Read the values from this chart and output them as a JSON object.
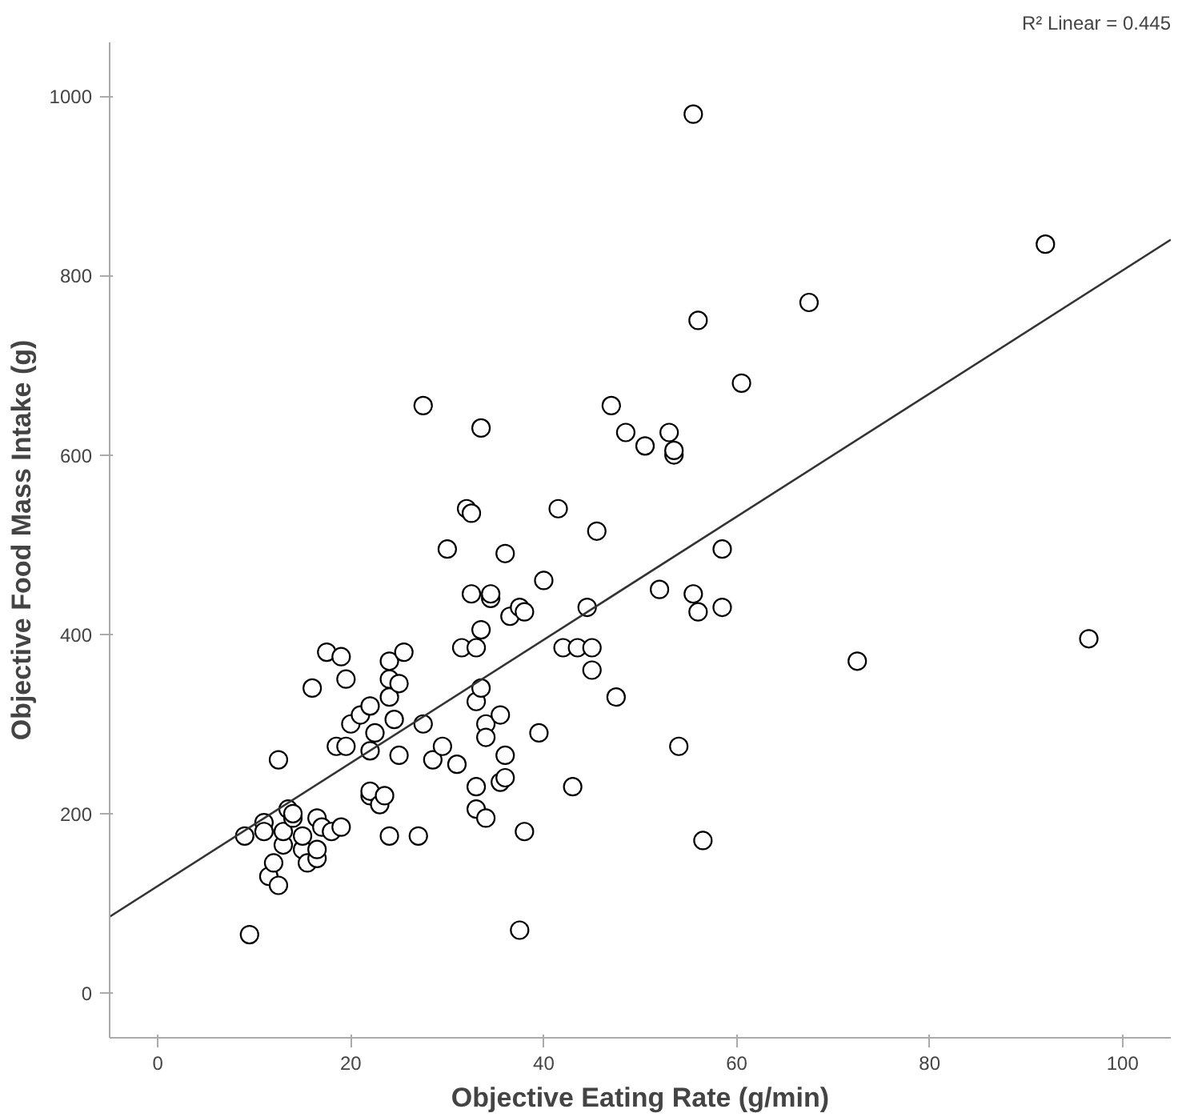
{
  "chart_data": {
    "type": "scatter",
    "xlabel": "Objective Eating Rate (g/min)",
    "ylabel": "Objective Food Mass Intake (g)",
    "annotations": [
      "R² Linear = 0.445"
    ],
    "xlim": [
      -5,
      105
    ],
    "ylim": [
      -50,
      1060
    ],
    "xticks": [
      0,
      20,
      40,
      60,
      80,
      100
    ],
    "yticks": [
      0,
      200,
      400,
      600,
      800,
      1000
    ],
    "grid": false,
    "marker": "circle",
    "series": [
      {
        "color": "#000000",
        "x": [
          9.5,
          9,
          11,
          11,
          11.5,
          12,
          12.5,
          12.5,
          13,
          13,
          13.5,
          14,
          14,
          15,
          15,
          15.5,
          16,
          16.5,
          16.5,
          16.5,
          17,
          17.5,
          18,
          18.5,
          19,
          19,
          19.5,
          19.5,
          20,
          21,
          22,
          22,
          22,
          22,
          22.5,
          23,
          23.5,
          24,
          24,
          24,
          24,
          24.5,
          25,
          25,
          25.5,
          27,
          27.5,
          27.5,
          28.5,
          29.5,
          30,
          31,
          31.5,
          32,
          32.5,
          32.5,
          33,
          33,
          33,
          33,
          33.5,
          33.5,
          33.5,
          34,
          34,
          34,
          34.5,
          34.5,
          35.5,
          35.5,
          36,
          36,
          36,
          36.5,
          37.5,
          37.5,
          38,
          38,
          39.5,
          40,
          41.5,
          42,
          43,
          43.5,
          44.5,
          45,
          45,
          45.5,
          47,
          47.5,
          48.5,
          50.5,
          52,
          53,
          53.5,
          53.5,
          54,
          55.5,
          55.5,
          56,
          56,
          56.5,
          58.5,
          58.5,
          60.5,
          67.5,
          72.5,
          92,
          96.5
        ],
        "values": [
          65,
          175,
          190,
          180,
          130,
          145,
          120,
          260,
          165,
          180,
          205,
          195,
          200,
          160,
          175,
          145,
          340,
          150,
          160,
          195,
          185,
          380,
          180,
          275,
          185,
          375,
          350,
          275,
          300,
          310,
          270,
          220,
          225,
          320,
          290,
          210,
          220,
          330,
          350,
          370,
          175,
          305,
          345,
          265,
          380,
          175,
          300,
          655,
          260,
          275,
          495,
          255,
          385,
          540,
          535,
          445,
          230,
          385,
          205,
          325,
          340,
          405,
          630,
          300,
          285,
          195,
          440,
          445,
          310,
          235,
          265,
          240,
          490,
          420,
          70,
          430,
          425,
          180,
          290,
          460,
          540,
          385,
          230,
          385,
          430,
          385,
          360,
          515,
          655,
          330,
          625,
          610,
          450,
          625,
          600,
          605,
          275,
          980,
          445,
          425,
          750,
          170,
          495,
          430,
          680,
          770,
          370,
          835,
          395
        ]
      },
      {
        "type": "line",
        "color": "#333333",
        "x": [
          -5,
          105
        ],
        "values": [
          85,
          840
        ],
        "marker": "none"
      }
    ]
  }
}
